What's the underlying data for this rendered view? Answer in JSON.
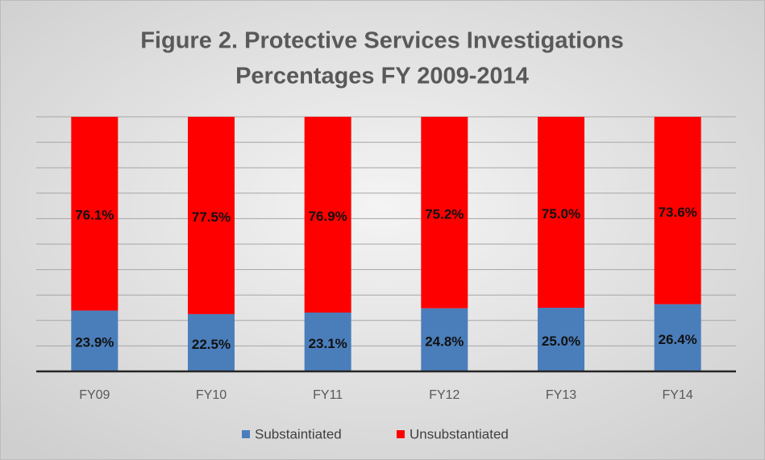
{
  "chart_data": {
    "type": "stacked_bar",
    "title": [
      "Figure 2. Protective Services Investigations",
      "Percentages FY 2009-2014"
    ],
    "categories": [
      "FY09",
      "FY10",
      "FY11",
      "FY12",
      "FY13",
      "FY14"
    ],
    "series": [
      {
        "name": "Substaintiated",
        "color": "#4a7ebb",
        "values": [
          23.9,
          22.5,
          23.1,
          24.8,
          25.0,
          26.4
        ],
        "value_labels": [
          "23.9%",
          "22.5%",
          "23.1%",
          "24.8%",
          "25.0%",
          "26.4%"
        ]
      },
      {
        "name": "Unsubstantiated",
        "color": "#ff0000",
        "values": [
          76.1,
          77.5,
          76.9,
          75.2,
          75.0,
          73.6
        ],
        "value_labels": [
          "76.1%",
          "77.5%",
          "76.9%",
          "75.2%",
          "75.0%",
          "73.6%"
        ]
      }
    ],
    "ylim": [
      0,
      100
    ],
    "yticks": [
      0,
      10,
      20,
      30,
      40,
      50,
      60,
      70,
      80,
      90,
      100
    ],
    "grid": true,
    "legend": "bottom"
  }
}
